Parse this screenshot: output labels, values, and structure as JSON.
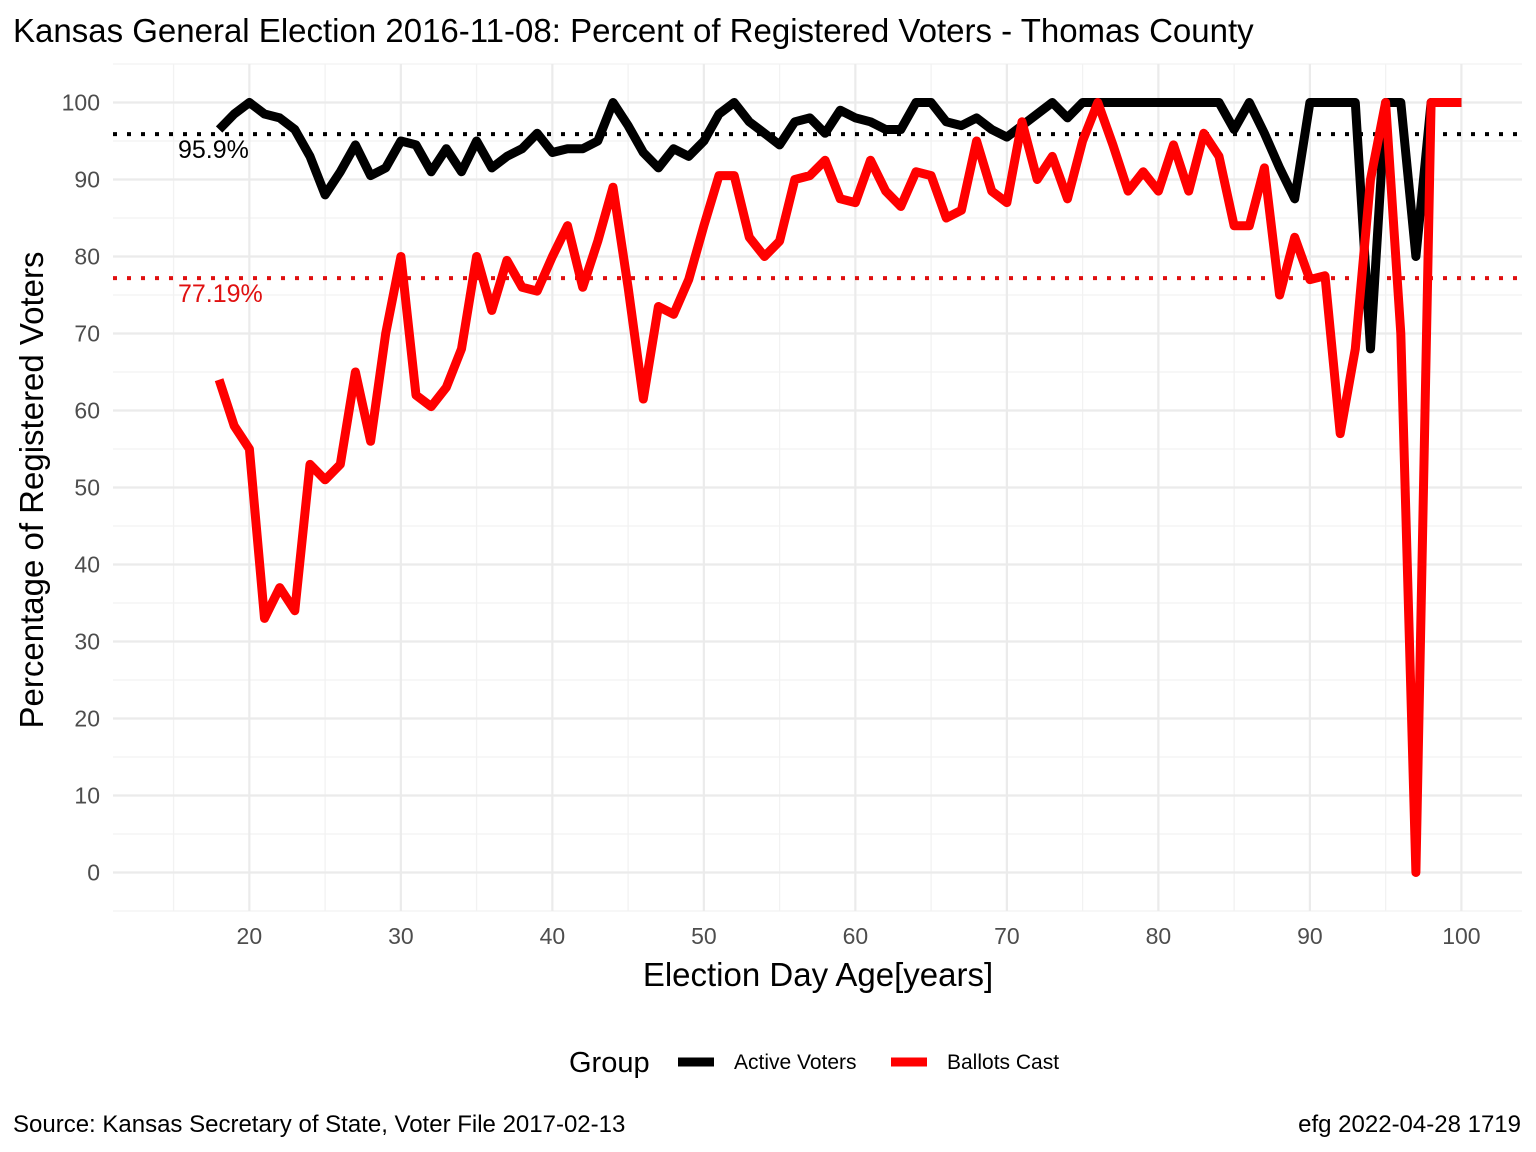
{
  "chart_data": {
    "type": "line",
    "title": "Kansas General Election 2016-11-08:  Percent of Registered Voters - Thomas County",
    "xlabel": "Election Day Age[years]",
    "ylabel": "Percentage of Registered Voters",
    "xlim": [
      11,
      104
    ],
    "ylim": [
      -5,
      105
    ],
    "x_ticks": [
      20,
      30,
      40,
      50,
      60,
      70,
      80,
      90,
      100
    ],
    "y_ticks": [
      0,
      10,
      20,
      30,
      40,
      50,
      60,
      70,
      80,
      90,
      100
    ],
    "x": [
      18,
      19,
      20,
      21,
      22,
      23,
      24,
      25,
      26,
      27,
      28,
      29,
      30,
      31,
      32,
      33,
      34,
      35,
      36,
      37,
      38,
      39,
      40,
      41,
      42,
      43,
      44,
      45,
      46,
      47,
      48,
      49,
      50,
      51,
      52,
      53,
      54,
      55,
      56,
      57,
      58,
      59,
      60,
      61,
      62,
      63,
      64,
      65,
      66,
      67,
      68,
      69,
      70,
      71,
      72,
      73,
      74,
      75,
      76,
      77,
      78,
      79,
      80,
      81,
      82,
      83,
      84,
      85,
      86,
      87,
      88,
      89,
      90,
      91,
      92,
      93,
      94,
      95,
      96,
      97,
      98,
      99,
      100
    ],
    "series": [
      {
        "name": "Active Voters",
        "color": "#000000",
        "values": [
          96.5,
          98.5,
          100,
          98.5,
          98,
          96.5,
          93,
          88,
          91,
          94.5,
          90.5,
          91.5,
          95,
          94.5,
          91,
          94,
          91,
          95,
          91.5,
          93,
          94,
          96,
          93.5,
          94,
          94,
          95,
          100,
          97,
          93.5,
          91.5,
          94,
          93,
          95,
          98.5,
          100,
          97.5,
          96,
          94.5,
          97.5,
          98,
          96,
          99,
          98,
          97.5,
          96.5,
          96.5,
          100,
          100,
          97.5,
          97,
          98,
          96.5,
          95.5,
          97,
          98.5,
          100,
          98,
          100,
          100,
          100,
          100,
          100,
          100,
          100,
          100,
          100,
          100,
          96.5,
          100,
          96,
          91.5,
          87.5,
          100,
          100,
          100,
          100,
          68,
          100,
          100,
          80,
          100,
          100,
          100
        ]
      },
      {
        "name": "Ballots Cast",
        "color": "#ff0000",
        "values": [
          64,
          58,
          55,
          33,
          37,
          34,
          53,
          51,
          53,
          65,
          56,
          70,
          80,
          62,
          60.5,
          63,
          68,
          80,
          73,
          79.5,
          76,
          75.5,
          80,
          84,
          76,
          82,
          89,
          76,
          61.5,
          73.5,
          72.5,
          77,
          84,
          90.5,
          90.5,
          82.5,
          80,
          82,
          90,
          90.5,
          92.5,
          87.5,
          87,
          92.5,
          88.5,
          86.5,
          91,
          90.5,
          85,
          86,
          95,
          88.5,
          87,
          97.5,
          90,
          93,
          87.5,
          95,
          100,
          94.5,
          88.5,
          91,
          88.5,
          94.5,
          88.5,
          96,
          93,
          84,
          84,
          91.5,
          75,
          82.5,
          77,
          77.5,
          57,
          68,
          90,
          100,
          70,
          0,
          100,
          100,
          100
        ]
      }
    ],
    "reference_lines": [
      {
        "series": "Active Voters",
        "value": 95.9,
        "label": "95.9%",
        "color": "#000000",
        "style": "dotted"
      },
      {
        "series": "Ballots Cast",
        "value": 77.19,
        "label": "77.19%",
        "color": "#e01010",
        "style": "dotted"
      }
    ],
    "legend": {
      "title": "Group",
      "position": "bottom",
      "entries": [
        "Active Voters",
        "Ballots Cast"
      ]
    },
    "grid": true
  },
  "caption": {
    "source": "Source:  Kansas Secretary of State, Voter File  2017-02-13",
    "credit": "efg 2022-04-28 1719"
  }
}
